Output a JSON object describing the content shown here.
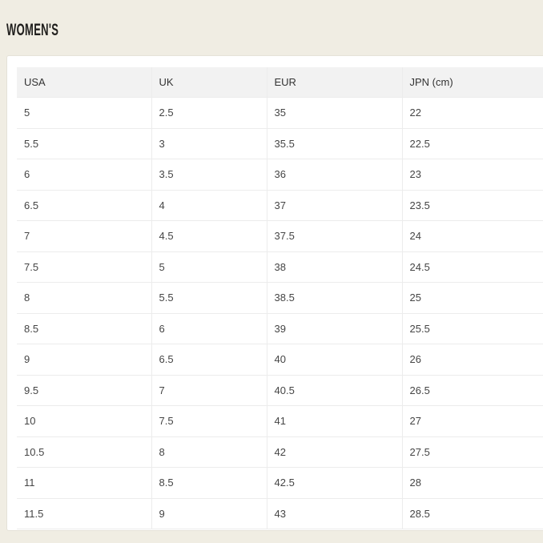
{
  "section": {
    "title": "WOMEN'S"
  },
  "table": {
    "columns": [
      "USA",
      "UK",
      "EUR",
      "JPN (cm)"
    ],
    "rows": [
      [
        "5",
        "2.5",
        "35",
        "22"
      ],
      [
        "5.5",
        "3",
        "35.5",
        "22.5"
      ],
      [
        "6",
        "3.5",
        "36",
        "23"
      ],
      [
        "6.5",
        "4",
        "37",
        "23.5"
      ],
      [
        "7",
        "4.5",
        "37.5",
        "24"
      ],
      [
        "7.5",
        "5",
        "38",
        "24.5"
      ],
      [
        "8",
        "5.5",
        "38.5",
        "25"
      ],
      [
        "8.5",
        "6",
        "39",
        "25.5"
      ],
      [
        "9",
        "6.5",
        "40",
        "26"
      ],
      [
        "9.5",
        "7",
        "40.5",
        "26.5"
      ],
      [
        "10",
        "7.5",
        "41",
        "27"
      ],
      [
        "10.5",
        "8",
        "42",
        "27.5"
      ],
      [
        "11",
        "8.5",
        "42.5",
        "28"
      ],
      [
        "11.5",
        "9",
        "43",
        "28.5"
      ]
    ]
  },
  "colors": {
    "background": "#f0ede3",
    "card": "#ffffff",
    "card_border": "#e5e2d8",
    "header_row_bg": "#f2f2f2",
    "row_line": "#ececec",
    "title_text": "#201f1d",
    "header_text": "#333333",
    "cell_text": "#454545"
  }
}
